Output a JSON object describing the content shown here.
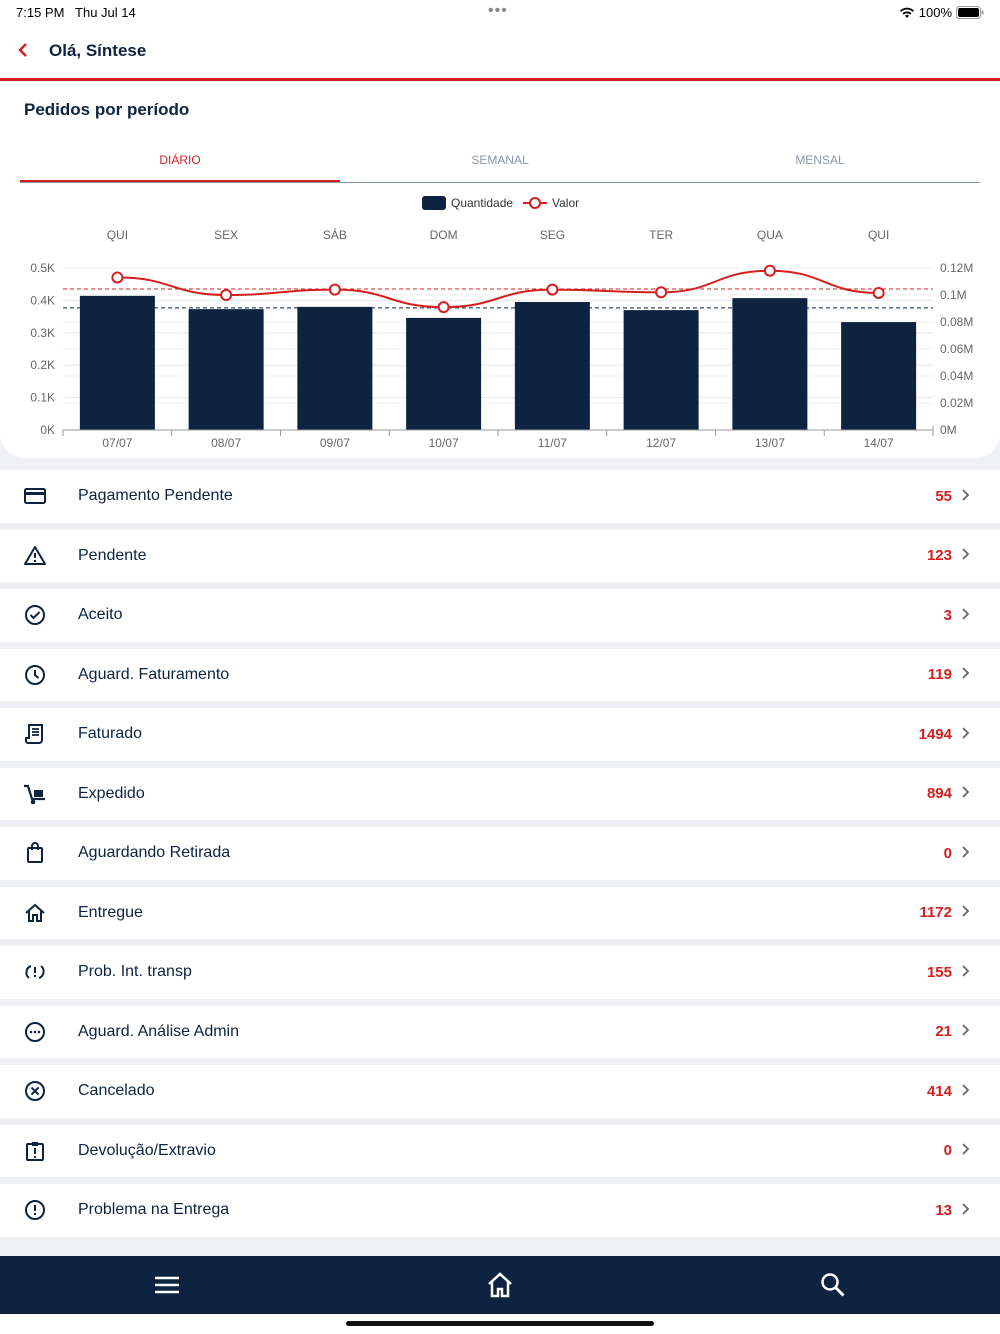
{
  "status_bar": {
    "time": "7:15 PM",
    "date": "Thu Jul 14",
    "battery": "100%"
  },
  "header": {
    "title": "Olá, Síntese"
  },
  "card": {
    "title": "Pedidos por período",
    "tabs": [
      {
        "label": "DIÁRIO",
        "active": true
      },
      {
        "label": "SEMANAL",
        "active": false
      },
      {
        "label": "MENSAL",
        "active": false
      }
    ]
  },
  "chart_data": {
    "type": "bar",
    "legend": [
      "Quantidade",
      "Valor"
    ],
    "legend_placement": "top-center",
    "days": [
      "QUI",
      "SEX",
      "SÁB",
      "DOM",
      "SEG",
      "TER",
      "QUA",
      "QUI"
    ],
    "categories": [
      "07/07",
      "08/07",
      "09/07",
      "10/07",
      "11/07",
      "12/07",
      "13/07",
      "14/07"
    ],
    "series": [
      {
        "name": "Quantidade",
        "type": "bar",
        "axis": "left",
        "values": [
          414,
          373,
          380,
          346,
          395,
          370,
          407,
          333
        ],
        "color": "#0d2340"
      },
      {
        "name": "Valor",
        "type": "line",
        "axis": "right",
        "values": [
          0.113,
          0.1,
          0.104,
          0.091,
          0.104,
          0.102,
          0.118,
          0.1015
        ],
        "color": "#d51f1f"
      }
    ],
    "averages": {
      "Quantidade": 377,
      "Valor": 0.1044
    },
    "y_left": {
      "ticks": [
        "0K",
        "0.1K",
        "0.2K",
        "0.3K",
        "0.4K",
        "0.5K"
      ],
      "range": [
        0,
        500
      ]
    },
    "y_right": {
      "ticks": [
        "0M",
        "0.02M",
        "0.04M",
        "0.06M",
        "0.08M",
        "0.1M",
        "0.12M"
      ],
      "range": [
        0,
        0.12
      ]
    }
  },
  "list": [
    {
      "label": "Pagamento Pendente",
      "count": "55",
      "icon": "credit-card-icon"
    },
    {
      "label": "Pendente",
      "count": "123",
      "icon": "warning-icon"
    },
    {
      "label": "Aceito",
      "count": "3",
      "icon": "check-circle-icon"
    },
    {
      "label": "Aguard. Faturamento",
      "count": "119",
      "icon": "clock-icon"
    },
    {
      "label": "Faturado",
      "count": "1494",
      "icon": "receipt-icon"
    },
    {
      "label": "Expedido",
      "count": "894",
      "icon": "hand-truck-icon"
    },
    {
      "label": "Aguardando Retirada",
      "count": "0",
      "icon": "shopping-bag-icon"
    },
    {
      "label": "Entregue",
      "count": "1172",
      "icon": "home-icon"
    },
    {
      "label": "Prob. Int. transp",
      "count": "155",
      "icon": "sync-problem-icon"
    },
    {
      "label": "Aguard. Análise Admin",
      "count": "21",
      "icon": "more-circle-icon"
    },
    {
      "label": "Cancelado",
      "count": "414",
      "icon": "cancel-circle-icon"
    },
    {
      "label": "Devolução/Extravio",
      "count": "0",
      "icon": "clipboard-alert-icon"
    },
    {
      "label": "Problema na Entrega",
      "count": "13",
      "icon": "alert-circle-icon"
    }
  ],
  "colors": {
    "primary": "#0d2340",
    "accent": "#d51f1f"
  }
}
